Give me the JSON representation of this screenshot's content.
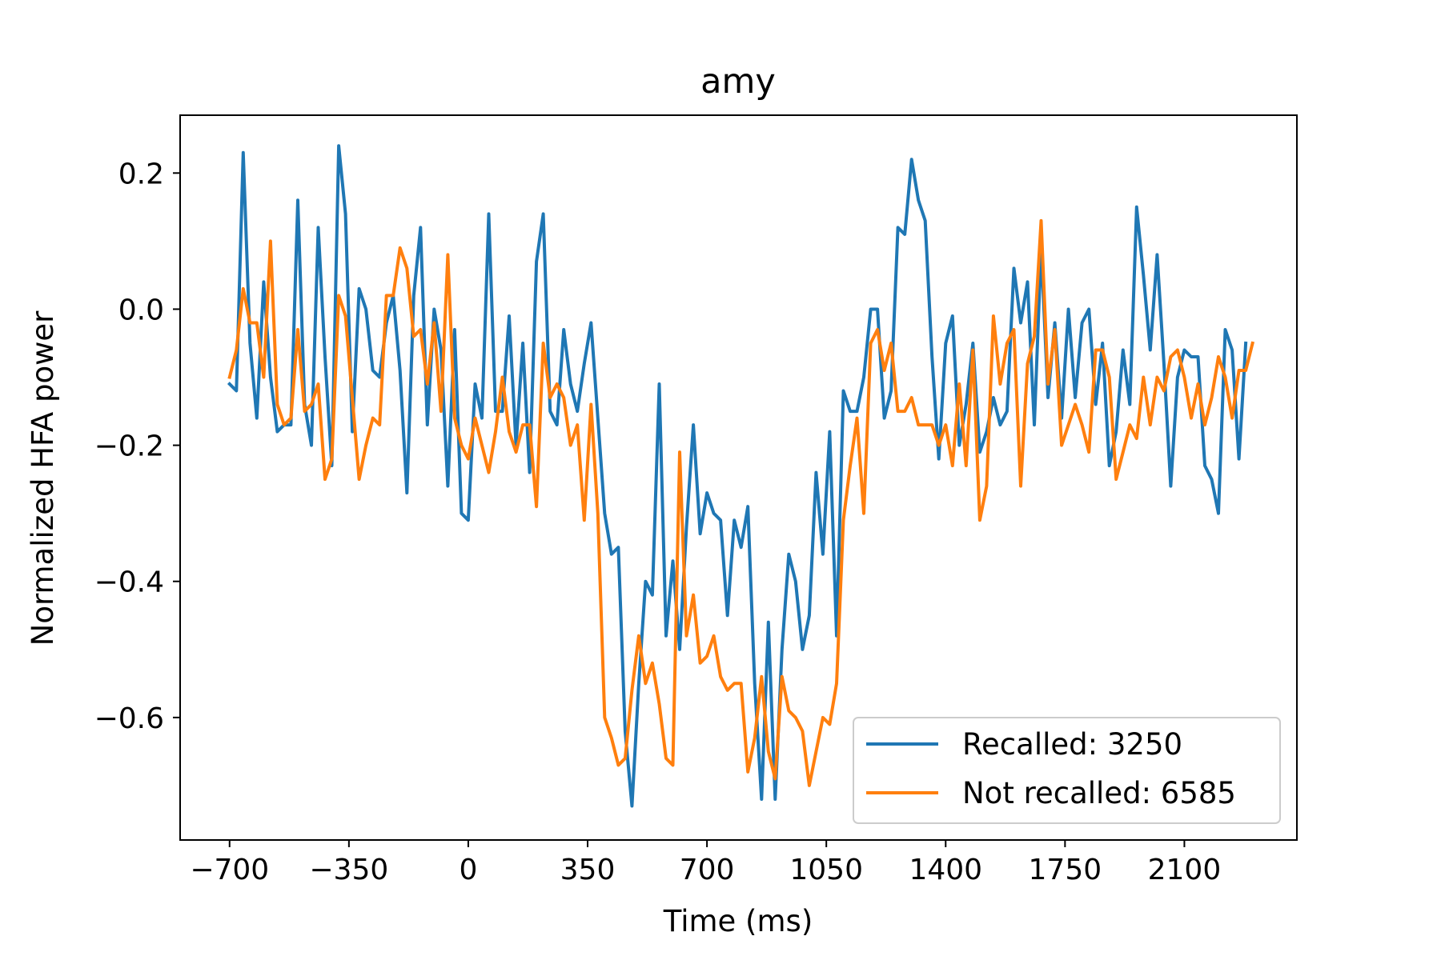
{
  "chart_data": {
    "type": "line",
    "title": "amy",
    "xlabel": "Time (ms)",
    "ylabel": "Normalized HFA power",
    "xlim": [
      -845,
      2430
    ],
    "ylim": [
      -0.78,
      0.285
    ],
    "xticks": [
      -700,
      -350,
      0,
      350,
      700,
      1050,
      1400,
      1750,
      2100
    ],
    "xtick_labels": [
      "−700",
      "−350",
      "0",
      "350",
      "700",
      "1050",
      "1400",
      "1750",
      "2100"
    ],
    "yticks": [
      0.2,
      0.0,
      -0.2,
      -0.4,
      -0.6
    ],
    "ytick_labels": [
      "0.2",
      "0.0",
      "−0.2",
      "−0.4",
      "−0.6"
    ],
    "grid": false,
    "legend_position": "lower-right",
    "x_start": -700,
    "x_step": 20,
    "series": [
      {
        "name": "Recalled: 3250",
        "color": "#1f77b4",
        "values": [
          -0.11,
          -0.12,
          0.23,
          -0.05,
          -0.16,
          0.04,
          -0.1,
          -0.18,
          -0.17,
          -0.17,
          0.16,
          -0.14,
          -0.2,
          0.12,
          -0.07,
          -0.23,
          0.24,
          0.14,
          -0.18,
          0.03,
          0.0,
          -0.09,
          -0.1,
          -0.02,
          0.02,
          -0.09,
          -0.27,
          0.02,
          0.12,
          -0.17,
          0.0,
          -0.06,
          -0.26,
          -0.03,
          -0.3,
          -0.31,
          -0.11,
          -0.16,
          0.14,
          -0.15,
          -0.15,
          -0.01,
          -0.2,
          -0.05,
          -0.24,
          0.07,
          0.14,
          -0.15,
          -0.17,
          -0.03,
          -0.11,
          -0.15,
          -0.08,
          -0.02,
          -0.16,
          -0.3,
          -0.36,
          -0.35,
          -0.62,
          -0.73,
          -0.55,
          -0.4,
          -0.42,
          -0.11,
          -0.48,
          -0.37,
          -0.5,
          -0.32,
          -0.17,
          -0.33,
          -0.27,
          -0.3,
          -0.31,
          -0.45,
          -0.31,
          -0.35,
          -0.29,
          -0.55,
          -0.72,
          -0.46,
          -0.72,
          -0.5,
          -0.36,
          -0.4,
          -0.5,
          -0.45,
          -0.24,
          -0.36,
          -0.18,
          -0.48,
          -0.12,
          -0.15,
          -0.15,
          -0.1,
          0.0,
          0.0,
          -0.16,
          -0.12,
          0.12,
          0.11,
          0.22,
          0.16,
          0.13,
          -0.07,
          -0.22,
          -0.05,
          -0.01,
          -0.2,
          -0.14,
          -0.05,
          -0.21,
          -0.18,
          -0.13,
          -0.17,
          -0.15,
          0.06,
          -0.02,
          0.04,
          -0.17,
          0.09,
          -0.13,
          -0.02,
          -0.16,
          0.0,
          -0.13,
          -0.02,
          0.0,
          -0.14,
          -0.05,
          -0.23,
          -0.18,
          -0.06,
          -0.14,
          0.15,
          0.05,
          -0.06,
          0.08,
          -0.08,
          -0.26,
          -0.1,
          -0.06,
          -0.07,
          -0.07,
          -0.23,
          -0.25,
          -0.3,
          -0.03,
          -0.06,
          -0.22,
          -0.05
        ]
      },
      {
        "name": "Not recalled: 6585",
        "color": "#ff7f0e",
        "values": [
          -0.1,
          -0.06,
          0.03,
          -0.02,
          -0.02,
          -0.1,
          0.1,
          -0.14,
          -0.17,
          -0.16,
          -0.03,
          -0.15,
          -0.14,
          -0.11,
          -0.25,
          -0.22,
          0.02,
          -0.01,
          -0.13,
          -0.25,
          -0.2,
          -0.16,
          -0.17,
          0.02,
          0.02,
          0.09,
          0.06,
          -0.04,
          -0.03,
          -0.11,
          -0.02,
          -0.15,
          0.08,
          -0.16,
          -0.2,
          -0.22,
          -0.16,
          -0.2,
          -0.24,
          -0.18,
          -0.1,
          -0.18,
          -0.21,
          -0.17,
          -0.17,
          -0.29,
          -0.05,
          -0.13,
          -0.11,
          -0.13,
          -0.2,
          -0.17,
          -0.31,
          -0.14,
          -0.3,
          -0.6,
          -0.63,
          -0.67,
          -0.66,
          -0.56,
          -0.48,
          -0.55,
          -0.52,
          -0.58,
          -0.66,
          -0.67,
          -0.21,
          -0.48,
          -0.42,
          -0.52,
          -0.51,
          -0.48,
          -0.54,
          -0.56,
          -0.55,
          -0.55,
          -0.68,
          -0.63,
          -0.54,
          -0.65,
          -0.69,
          -0.54,
          -0.59,
          -0.6,
          -0.62,
          -0.7,
          -0.65,
          -0.6,
          -0.61,
          -0.55,
          -0.31,
          -0.23,
          -0.16,
          -0.3,
          -0.05,
          -0.03,
          -0.09,
          -0.05,
          -0.15,
          -0.15,
          -0.13,
          -0.17,
          -0.17,
          -0.17,
          -0.2,
          -0.17,
          -0.23,
          -0.11,
          -0.23,
          -0.06,
          -0.31,
          -0.26,
          -0.01,
          -0.11,
          -0.05,
          -0.03,
          -0.26,
          -0.08,
          -0.04,
          0.13,
          -0.11,
          -0.03,
          -0.2,
          -0.17,
          -0.14,
          -0.17,
          -0.21,
          -0.06,
          -0.06,
          -0.1,
          -0.25,
          -0.21,
          -0.17,
          -0.19,
          -0.1,
          -0.17,
          -0.1,
          -0.12,
          -0.07,
          -0.06,
          -0.1,
          -0.16,
          -0.11,
          -0.17,
          -0.13,
          -0.07,
          -0.1,
          -0.16,
          -0.09,
          -0.09,
          -0.05
        ]
      }
    ]
  }
}
